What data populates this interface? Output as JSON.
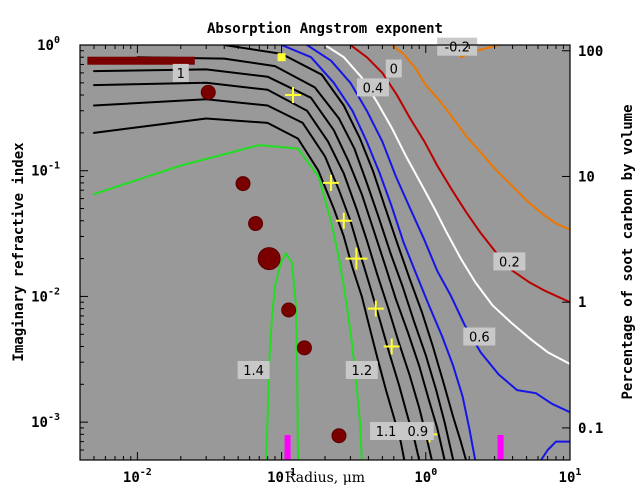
{
  "chart_data": {
    "type": "contour",
    "title": "Absorption Angstrom exponent",
    "xlabel": "Radius, μm",
    "ylabel": "Imaginary refractive index",
    "y2label": "Percentage of soot carbon by volume",
    "xscale": "log",
    "yscale": "log",
    "xlim": [
      0.004,
      10
    ],
    "ylim": [
      0.0005,
      1
    ],
    "x_ticks": [
      {
        "value": 0.01,
        "base": "10",
        "exp": "-2"
      },
      {
        "value": 0.1,
        "base": "10",
        "exp": "-1"
      },
      {
        "value": 1,
        "base": "10",
        "exp": "0"
      },
      {
        "value": 10,
        "base": "10",
        "exp": "1"
      }
    ],
    "y_ticks": [
      {
        "value": 1,
        "base": "10",
        "exp": "0"
      },
      {
        "value": 0.1,
        "base": "10",
        "exp": "-1"
      },
      {
        "value": 0.01,
        "base": "10",
        "exp": "-2"
      },
      {
        "value": 0.001,
        "base": "10",
        "exp": "-3"
      }
    ],
    "y2_ticks": [
      {
        "value": 0.9,
        "label": "100"
      },
      {
        "value": 0.09,
        "label": "10"
      },
      {
        "value": 0.009,
        "label": "1"
      },
      {
        "value": 0.0009,
        "label": "0.1"
      }
    ],
    "colors": {
      "background": "#999999",
      "green": "#22dd22",
      "black": "#000000",
      "blue": "#1515e6",
      "white": "#ffffff",
      "red": "#bb0000",
      "orange": "#ee7700",
      "markers_circle": "#7a0000",
      "markers_plus": "#ffff33",
      "magenta": "#ff00ff"
    },
    "contours": [
      {
        "level": "1.4",
        "color": "green",
        "points": [
          [
            0.078,
            0.0005
          ],
          [
            0.08,
            0.0011
          ],
          [
            0.082,
            0.003
          ],
          [
            0.086,
            0.007
          ],
          [
            0.09,
            0.012
          ],
          [
            0.098,
            0.018
          ],
          [
            0.107,
            0.022
          ],
          [
            0.118,
            0.0185
          ],
          [
            0.125,
            0.009
          ],
          [
            0.128,
            0.003
          ],
          [
            0.13,
            0.0005
          ]
        ]
      },
      {
        "level": "1.2",
        "color": "green",
        "points": [
          [
            0.005,
            0.065
          ],
          [
            0.02,
            0.11
          ],
          [
            0.07,
            0.16
          ],
          [
            0.13,
            0.15
          ],
          [
            0.18,
            0.09
          ],
          [
            0.22,
            0.04
          ],
          [
            0.25,
            0.02
          ],
          [
            0.27,
            0.012
          ],
          [
            0.29,
            0.007
          ],
          [
            0.31,
            0.004
          ],
          [
            0.33,
            0.002
          ],
          [
            0.35,
            0.001
          ],
          [
            0.36,
            0.0005
          ]
        ]
      },
      {
        "level": "1.1",
        "color": "black",
        "points": [
          [
            0.005,
            0.2
          ],
          [
            0.03,
            0.26
          ],
          [
            0.08,
            0.24
          ],
          [
            0.13,
            0.18
          ],
          [
            0.18,
            0.1
          ],
          [
            0.23,
            0.05
          ],
          [
            0.27,
            0.03
          ],
          [
            0.31,
            0.017
          ],
          [
            0.36,
            0.01
          ],
          [
            0.41,
            0.0055
          ],
          [
            0.47,
            0.003
          ],
          [
            0.53,
            0.0018
          ],
          [
            0.6,
            0.0011
          ],
          [
            0.67,
            0.0007
          ],
          [
            0.71,
            0.0005
          ]
        ]
      },
      {
        "level": "",
        "color": "black",
        "points": [
          [
            0.005,
            0.33
          ],
          [
            0.03,
            0.37
          ],
          [
            0.08,
            0.33
          ],
          [
            0.14,
            0.24
          ],
          [
            0.2,
            0.13
          ],
          [
            0.25,
            0.07
          ],
          [
            0.3,
            0.04
          ],
          [
            0.35,
            0.022
          ],
          [
            0.41,
            0.012
          ],
          [
            0.48,
            0.0065
          ],
          [
            0.56,
            0.0035
          ],
          [
            0.65,
            0.002
          ],
          [
            0.75,
            0.0011
          ],
          [
            0.84,
            0.0007
          ],
          [
            0.9,
            0.0005
          ]
        ]
      },
      {
        "level": "",
        "color": "black",
        "points": [
          [
            0.005,
            0.48
          ],
          [
            0.03,
            0.5
          ],
          [
            0.08,
            0.44
          ],
          [
            0.15,
            0.3
          ],
          [
            0.21,
            0.17
          ],
          [
            0.27,
            0.095
          ],
          [
            0.33,
            0.05
          ],
          [
            0.39,
            0.028
          ],
          [
            0.46,
            0.015
          ],
          [
            0.55,
            0.008
          ],
          [
            0.65,
            0.0043
          ],
          [
            0.77,
            0.0024
          ],
          [
            0.9,
            0.0013
          ],
          [
            1.0,
            0.0008
          ],
          [
            1.1,
            0.0005
          ]
        ]
      },
      {
        "level": "1",
        "color": "black",
        "points": [
          [
            0.005,
            0.62
          ],
          [
            0.03,
            0.64
          ],
          [
            0.08,
            0.56
          ],
          [
            0.16,
            0.38
          ],
          [
            0.23,
            0.21
          ],
          [
            0.29,
            0.12
          ],
          [
            0.36,
            0.065
          ],
          [
            0.43,
            0.035
          ],
          [
            0.52,
            0.018
          ],
          [
            0.62,
            0.0095
          ],
          [
            0.75,
            0.0052
          ],
          [
            0.9,
            0.0028
          ],
          [
            1.05,
            0.0015
          ],
          [
            1.2,
            0.0009
          ],
          [
            1.35,
            0.0005
          ]
        ]
      },
      {
        "level": "",
        "color": "black",
        "points": [
          [
            0.01,
            0.8
          ],
          [
            0.04,
            0.78
          ],
          [
            0.09,
            0.68
          ],
          [
            0.17,
            0.46
          ],
          [
            0.25,
            0.26
          ],
          [
            0.32,
            0.15
          ],
          [
            0.39,
            0.08
          ],
          [
            0.47,
            0.043
          ],
          [
            0.57,
            0.022
          ],
          [
            0.69,
            0.012
          ],
          [
            0.83,
            0.0063
          ],
          [
            1.0,
            0.0034
          ],
          [
            1.18,
            0.0018
          ],
          [
            1.35,
            0.001
          ],
          [
            1.55,
            0.0005
          ]
        ]
      },
      {
        "level": "0.9",
        "color": "black",
        "points": [
          [
            0.04,
            1.0
          ],
          [
            0.1,
            0.85
          ],
          [
            0.19,
            0.58
          ],
          [
            0.27,
            0.33
          ],
          [
            0.35,
            0.18
          ],
          [
            0.43,
            0.1
          ],
          [
            0.52,
            0.052
          ],
          [
            0.63,
            0.027
          ],
          [
            0.77,
            0.014
          ],
          [
            0.94,
            0.0075
          ],
          [
            1.12,
            0.004
          ],
          [
            1.32,
            0.0021
          ],
          [
            1.55,
            0.0011
          ],
          [
            1.75,
            0.0007
          ],
          [
            1.9,
            0.0005
          ]
        ]
      },
      {
        "level": "",
        "color": "blue",
        "points": [
          [
            0.1,
            1.0
          ],
          [
            0.16,
            0.8
          ],
          [
            0.23,
            0.5
          ],
          [
            0.31,
            0.3
          ],
          [
            0.39,
            0.17
          ],
          [
            0.48,
            0.095
          ],
          [
            0.58,
            0.052
          ],
          [
            0.7,
            0.027
          ],
          [
            0.86,
            0.015
          ],
          [
            1.05,
            0.0085
          ],
          [
            1.3,
            0.0048
          ],
          [
            1.55,
            0.0028
          ],
          [
            1.8,
            0.0016
          ],
          [
            2.0,
            0.0009
          ],
          [
            2.2,
            0.0005
          ]
        ]
      },
      {
        "level": "",
        "color": "blue",
        "points": [
          [
            6.3,
            0.0005
          ],
          [
            7,
            0.0006
          ],
          [
            8,
            0.0007
          ],
          [
            10,
            0.0007
          ]
        ]
      },
      {
        "level": "0.6",
        "color": "blue",
        "points": [
          [
            0.15,
            1.0
          ],
          [
            0.22,
            0.75
          ],
          [
            0.3,
            0.5
          ],
          [
            0.39,
            0.3
          ],
          [
            0.5,
            0.17
          ],
          [
            0.62,
            0.09
          ],
          [
            0.78,
            0.05
          ],
          [
            0.98,
            0.028
          ],
          [
            1.2,
            0.016
          ],
          [
            1.5,
            0.01
          ],
          [
            1.85,
            0.006
          ],
          [
            2.4,
            0.0036
          ],
          [
            3.2,
            0.0024
          ],
          [
            4.3,
            0.0018
          ],
          [
            5.8,
            0.0017
          ],
          [
            7.5,
            0.0014
          ],
          [
            10,
            0.0012
          ]
        ]
      },
      {
        "level": "0.4",
        "color": "white",
        "points": [
          [
            0.2,
            1.0
          ],
          [
            0.27,
            0.8
          ],
          [
            0.36,
            0.55
          ],
          [
            0.46,
            0.35
          ],
          [
            0.58,
            0.22
          ],
          [
            0.73,
            0.13
          ],
          [
            0.92,
            0.08
          ],
          [
            1.15,
            0.05
          ],
          [
            1.4,
            0.032
          ],
          [
            1.75,
            0.02
          ],
          [
            2.2,
            0.013
          ],
          [
            2.9,
            0.0085
          ],
          [
            3.9,
            0.0062
          ],
          [
            5.3,
            0.0046
          ],
          [
            7,
            0.0036
          ],
          [
            10,
            0.0029
          ]
        ]
      },
      {
        "level": "0.2",
        "color": "red",
        "points": [
          [
            0.3,
            1.0
          ],
          [
            0.39,
            0.8
          ],
          [
            0.5,
            0.6
          ],
          [
            0.63,
            0.4
          ],
          [
            0.78,
            0.26
          ],
          [
            0.98,
            0.17
          ],
          [
            1.2,
            0.11
          ],
          [
            1.5,
            0.072
          ],
          [
            1.9,
            0.047
          ],
          [
            2.4,
            0.032
          ],
          [
            3.1,
            0.022
          ],
          [
            4,
            0.016
          ],
          [
            5.2,
            0.013
          ],
          [
            6.8,
            0.011
          ],
          [
            10,
            0.009
          ]
        ]
      },
      {
        "level": "0",
        "color": "orange",
        "points": [
          [
            0.58,
            1.0
          ],
          [
            0.7,
            0.85
          ],
          [
            0.85,
            0.65
          ],
          [
            1.0,
            0.48
          ],
          [
            1.25,
            0.36
          ],
          [
            1.55,
            0.26
          ],
          [
            1.9,
            0.19
          ],
          [
            2.4,
            0.14
          ],
          [
            3.1,
            0.1
          ],
          [
            4,
            0.075
          ],
          [
            5,
            0.058
          ],
          [
            6.5,
            0.045
          ],
          [
            8,
            0.038
          ],
          [
            10,
            0.034
          ]
        ]
      },
      {
        "level": "-0.2",
        "color": "orange",
        "points": [
          [
            1.75,
            0.8
          ],
          [
            2.1,
            0.88
          ],
          [
            2.6,
            0.94
          ],
          [
            3.2,
            1.0
          ]
        ]
      }
    ],
    "level_labels": [
      {
        "text": "-0.2",
        "x": 1.65,
        "y": 0.97
      },
      {
        "text": "0",
        "x": 0.6,
        "y": 0.65
      },
      {
        "text": "0.4",
        "x": 0.43,
        "y": 0.46
      },
      {
        "text": "1",
        "x": 0.02,
        "y": 0.6
      },
      {
        "text": "1.4",
        "x": 0.064,
        "y": 0.0026
      },
      {
        "text": "1.2",
        "x": 0.36,
        "y": 0.0026
      },
      {
        "text": "1.1",
        "x": 0.53,
        "y": 0.00085
      },
      {
        "text": "0.9",
        "x": 0.88,
        "y": 0.00085
      },
      {
        "text": "0.6",
        "x": 2.35,
        "y": 0.0048
      },
      {
        "text": "0.2",
        "x": 3.8,
        "y": 0.019
      }
    ],
    "markers_circle": [
      {
        "x": 0.031,
        "y": 0.42,
        "size": 7
      },
      {
        "x": 0.054,
        "y": 0.079,
        "size": 7
      },
      {
        "x": 0.066,
        "y": 0.038,
        "size": 7
      },
      {
        "x": 0.082,
        "y": 0.02,
        "size": 11
      },
      {
        "x": 0.112,
        "y": 0.0078,
        "size": 7
      },
      {
        "x": 0.144,
        "y": 0.0039,
        "size": 7
      },
      {
        "x": 0.25,
        "y": 0.00078,
        "size": 7
      }
    ],
    "markers_plus": [
      {
        "x": 0.12,
        "y": 0.4,
        "size": 8
      },
      {
        "x": 0.22,
        "y": 0.08,
        "size": 8
      },
      {
        "x": 0.27,
        "y": 0.04,
        "size": 8
      },
      {
        "x": 0.33,
        "y": 0.02,
        "size": 11
      },
      {
        "x": 0.45,
        "y": 0.008,
        "size": 8
      },
      {
        "x": 0.58,
        "y": 0.004,
        "size": 8
      },
      {
        "x": 1.06,
        "y": 0.0008,
        "size": 8
      }
    ],
    "marker_square": {
      "x": 0.1,
      "y": 0.8
    },
    "bar_dark_red": {
      "x1": 0.0045,
      "x2": 0.025,
      "y": 0.75
    },
    "magenta_ticks": [
      0.11,
      3.3
    ]
  }
}
